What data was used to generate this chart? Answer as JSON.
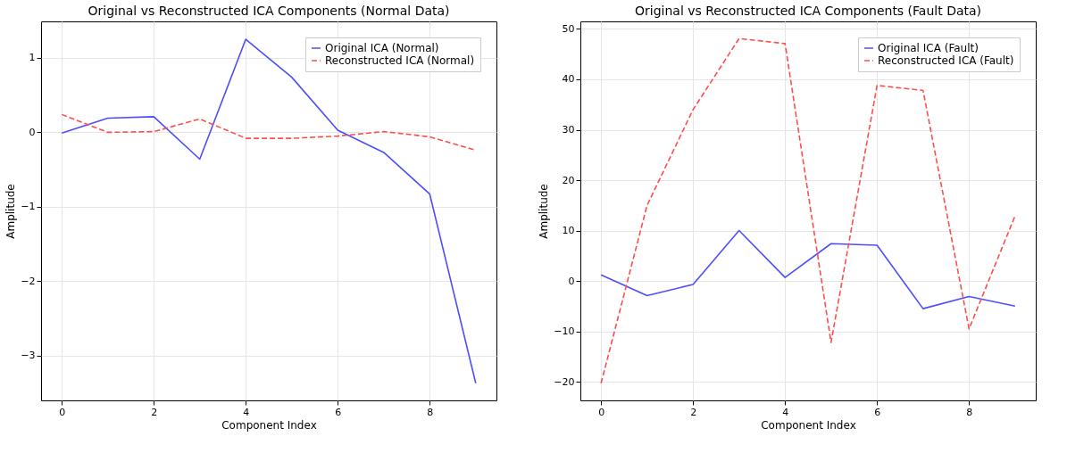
{
  "chart_data": [
    {
      "type": "line",
      "title": "Original vs Reconstructed ICA Components (Normal Data)",
      "xlabel": "Component Index",
      "ylabel": "Amplitude",
      "x": [
        0,
        1,
        2,
        3,
        4,
        5,
        6,
        7,
        8,
        9
      ],
      "xlim": [
        -0.45,
        9.45
      ],
      "xticks": [
        0,
        2,
        4,
        6,
        8
      ],
      "ylim": [
        -3.6,
        1.49
      ],
      "yticks": [
        -3,
        -2,
        -1,
        0,
        1
      ],
      "grid": true,
      "legend": "top right",
      "marker": "none",
      "series": [
        {
          "name": "Original ICA (Normal)",
          "color": "#4d4dff",
          "line_style": "solid",
          "values": [
            -0.01,
            0.19,
            0.21,
            -0.36,
            1.25,
            0.74,
            0.03,
            -0.27,
            -0.83,
            -3.37
          ]
        },
        {
          "name": "Reconstructed ICA (Normal)",
          "color": "#ff4d4d",
          "line_style": "dashed",
          "values": [
            0.24,
            0.0,
            0.01,
            0.18,
            -0.08,
            -0.08,
            -0.05,
            0.01,
            -0.06,
            -0.24
          ]
        }
      ]
    },
    {
      "type": "line",
      "title": "Original vs Reconstructed ICA Components (Fault Data)",
      "xlabel": "Component Index",
      "ylabel": "Amplitude",
      "x": [
        0,
        1,
        2,
        3,
        4,
        5,
        6,
        7,
        8,
        9
      ],
      "xlim": [
        -0.45,
        9.45
      ],
      "xticks": [
        0,
        2,
        4,
        6,
        8
      ],
      "ylim": [
        -23.7,
        51.5
      ],
      "yticks": [
        -20,
        -10,
        0,
        10,
        20,
        30,
        40,
        50
      ],
      "grid": true,
      "legend": "top right",
      "marker": "none",
      "series": [
        {
          "name": "Original ICA (Fault)",
          "color": "#4d4dff",
          "line_style": "solid",
          "values": [
            1.2,
            -2.9,
            -0.7,
            10.0,
            0.7,
            7.4,
            7.1,
            -5.5,
            -3.1,
            -5.0
          ]
        },
        {
          "name": "Reconstructed ICA (Fault)",
          "color": "#ff4d4d",
          "line_style": "dashed",
          "values": [
            -20.3,
            15.0,
            34.0,
            48.1,
            47.1,
            -12.2,
            38.8,
            37.8,
            -9.5,
            12.9
          ]
        }
      ]
    }
  ]
}
